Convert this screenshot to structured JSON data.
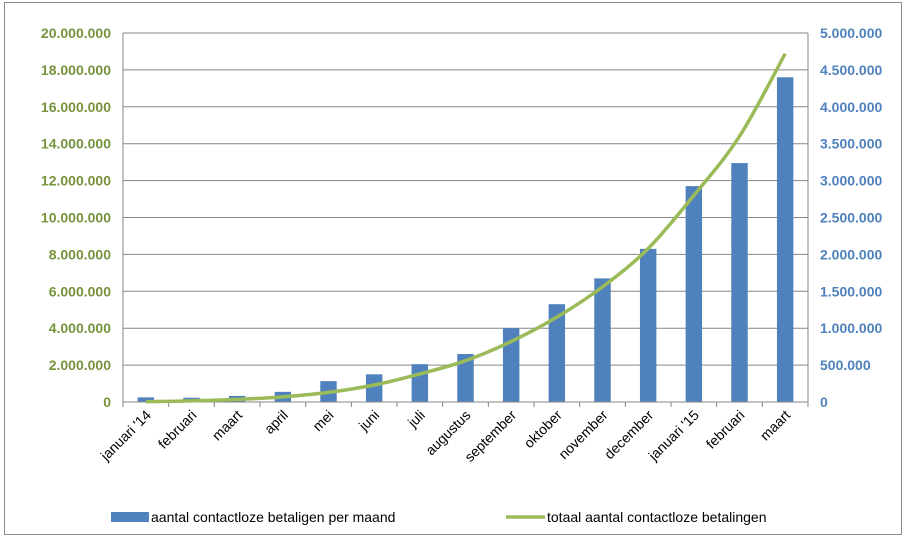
{
  "chart_data": {
    "type": "bar",
    "categories": [
      "januari '14",
      "februari",
      "maart",
      "april",
      "mei",
      "juni",
      "juli",
      "augustus",
      "september",
      "oktober",
      "november",
      "december",
      "januari '15",
      "februari",
      "maart"
    ],
    "series": [
      {
        "name": "aantal contactloze betaligen per maand",
        "type": "bar",
        "axis": "left",
        "color": "#4f81bd",
        "values": [
          250000,
          230000,
          330000,
          550000,
          1130000,
          1500000,
          2050000,
          2600000,
          4000000,
          5300000,
          6700000,
          8300000,
          11700000,
          12950000,
          17600000
        ]
      },
      {
        "name": "totaal aantal contactloze betalingen",
        "type": "line",
        "axis": "right",
        "color": "#9bbb59",
        "values": [
          5000,
          15000,
          35000,
          70000,
          130000,
          230000,
          380000,
          560000,
          820000,
          1150000,
          1560000,
          2080000,
          2800000,
          3600000,
          4720000
        ]
      }
    ],
    "left_axis": {
      "ylim": [
        0,
        20000000
      ],
      "ticks": [
        "0",
        "2.000.000",
        "4.000.000",
        "6.000.000",
        "8.000.000",
        "10.000.000",
        "12.000.000",
        "14.000.000",
        "16.000.000",
        "18.000.000",
        "20.000.000"
      ],
      "color": "#77933c"
    },
    "right_axis": {
      "ylim": [
        0,
        5000000
      ],
      "ticks": [
        "0",
        "500.000",
        "1.000.000",
        "1.500.000",
        "2.000.000",
        "2.500.000",
        "3.000.000",
        "3.500.000",
        "4.000.000",
        "4.500.000",
        "5.000.000"
      ],
      "color": "#4f81bd"
    },
    "grid": true,
    "legend_position": "bottom"
  }
}
